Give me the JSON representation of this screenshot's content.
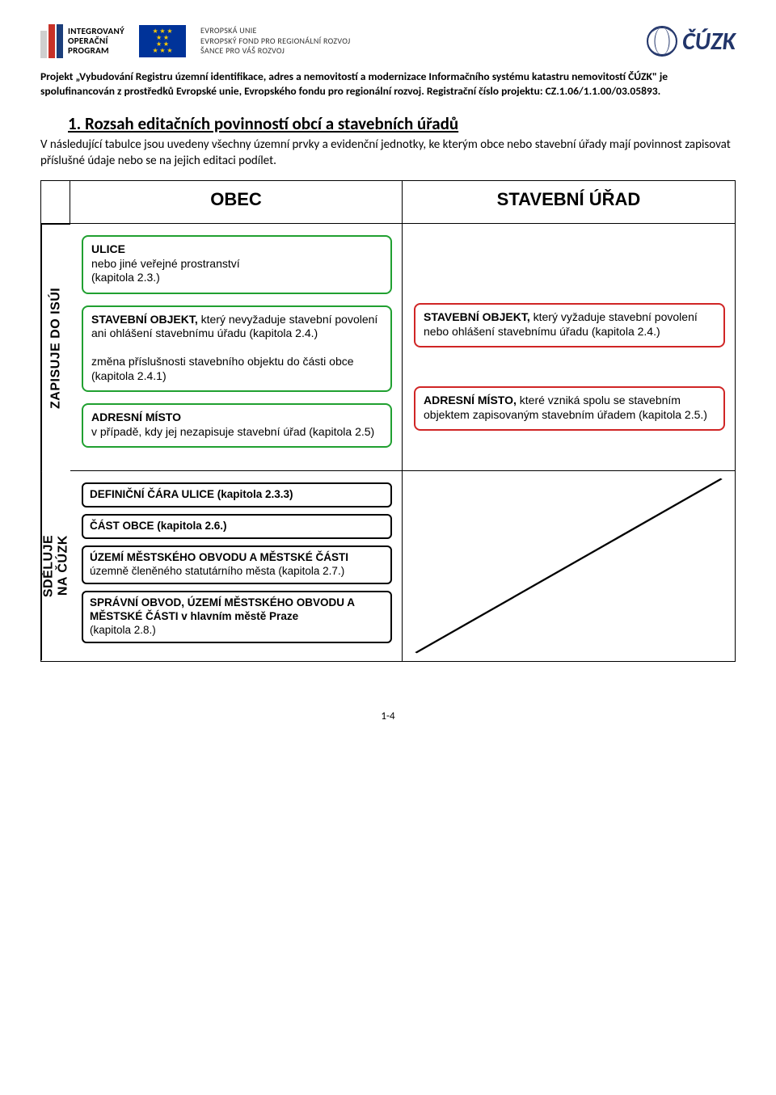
{
  "header": {
    "iop_text": "INTEGROVANÝ\nOPERAČNÍ\nPROGRAM",
    "eu_flag_stars": "★ ★ ★\n★     ★\n★     ★\n★ ★ ★",
    "eu_text": "EVROPSKÁ UNIE\nEVROPSKÝ FOND PRO REGIONÁLNÍ ROZVOJ\nŠANCE PRO VÁŠ ROZVOJ",
    "cuzk_text": "ČÚZK"
  },
  "project_blurb": "Projekt „Vybudování Registru územní identifikace, adres a nemovitostí a modernizace Informačního systému katastru nemovitostí ČÚZK\" je spolufinancován z prostředků Evropské unie, Evropského fondu pro regionální rozvoj. Registrační číslo projektu: CZ.1.06/1.1.00/03.05893.",
  "section_title": "1. Rozsah editačních povinností obcí a stavebních úřadů",
  "intro_text": "V následující tabulce jsou uvedeny všechny územní prvky a evidenční jednotky, ke kterým obce nebo stavební úřady mají povinnost zapisovat příslušné údaje nebo se na jejich editaci podílet.",
  "diagram": {
    "col_headers": {
      "obec": "OBEC",
      "su": "STAVEBNÍ ÚŘAD"
    },
    "side_labels": {
      "top": "ZAPISUJE DO ISÚI",
      "bottom": "SDĚLUJE\nNA ČÚZK"
    },
    "obec_top": [
      {
        "style": "green",
        "heading": "ULICE",
        "body": "nebo jiné veřejné prostranství\n(kapitola 2.3.)"
      },
      {
        "style": "green",
        "heading": "STAVEBNÍ OBJEKT,",
        "body": "který nevyžaduje stavební povolení ani ohlášení stavebnímu úřadu (kapitola 2.4.)\n\nzměna příslušnosti stavebního objektu do části obce (kapitola 2.4.1)"
      },
      {
        "style": "green",
        "heading": "ADRESNÍ MÍSTO",
        "body": "v případě, kdy jej nezapisuje stavební úřad (kapitola 2.5)"
      }
    ],
    "su_top": [
      {
        "style": "red",
        "heading": "STAVEBNÍ OBJEKT,",
        "body": "který vyžaduje stavební povolení nebo ohlášení stavebnímu úřadu (kapitola 2.4.)"
      },
      {
        "style": "red",
        "heading": "ADRESNÍ MÍSTO,",
        "body": "které vzniká spolu se stavebním objektem zapisovaným stavebním úřadem (kapitola 2.5.)"
      }
    ],
    "obec_bottom": [
      {
        "style": "black",
        "heading": "DEFINIČNÍ ČÁRA ULICE (kapitola 2.3.3)",
        "body": ""
      },
      {
        "style": "black",
        "heading": "ČÁST OBCE (kapitola 2.6.)",
        "body": ""
      },
      {
        "style": "black",
        "heading": "ÚZEMÍ MĚSTSKÉHO OBVODU A MĚSTSKÉ ČÁSTI",
        "body": "územně členěného statutárního města (kapitola 2.7.)"
      },
      {
        "style": "black",
        "heading": "SPRÁVNÍ OBVOD, ÚZEMÍ MĚSTSKÉHO OBVODU A MĚSTSKÉ ČÁSTI v hlavním městě Praze",
        "body": "(kapitola 2.8.)"
      }
    ]
  },
  "page_num": "1-4",
  "colors": {
    "green": "#20a030",
    "red": "#d02525",
    "black_border": "#000000"
  }
}
